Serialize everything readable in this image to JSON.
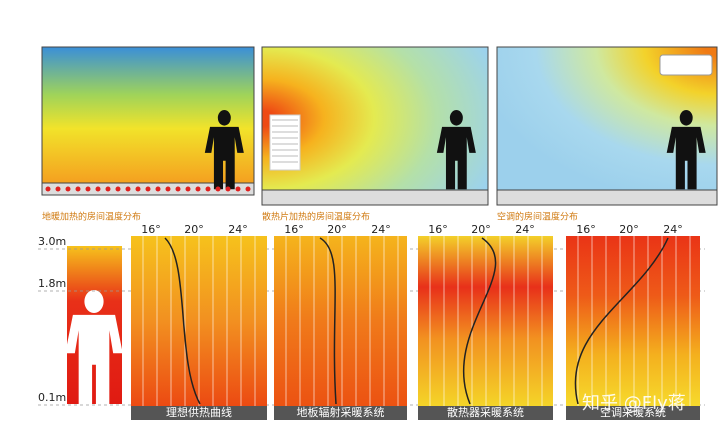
{
  "top_panels": [
    {
      "caption": "地暖加热的房间温度分布"
    },
    {
      "caption": "散热片加热的房间温度分布"
    },
    {
      "caption": "空调的房间温度分布"
    }
  ],
  "height_labels": [
    "3.0m",
    "1.8m",
    "0.1m"
  ],
  "bottom_panels": [
    {
      "ticks": [
        "16°",
        "20°",
        "24°"
      ],
      "label": "理想供热曲线"
    },
    {
      "ticks": [
        "16°",
        "20°",
        "24°"
      ],
      "label": "地板辐射采暖系统"
    },
    {
      "ticks": [
        "16°",
        "20°",
        "24°"
      ],
      "label": "散热器采暖系统"
    },
    {
      "ticks": [
        "16°",
        "20°",
        "24°"
      ],
      "label": "空调采暖系统"
    }
  ],
  "watermark": "知乎 @Fly蒋"
}
